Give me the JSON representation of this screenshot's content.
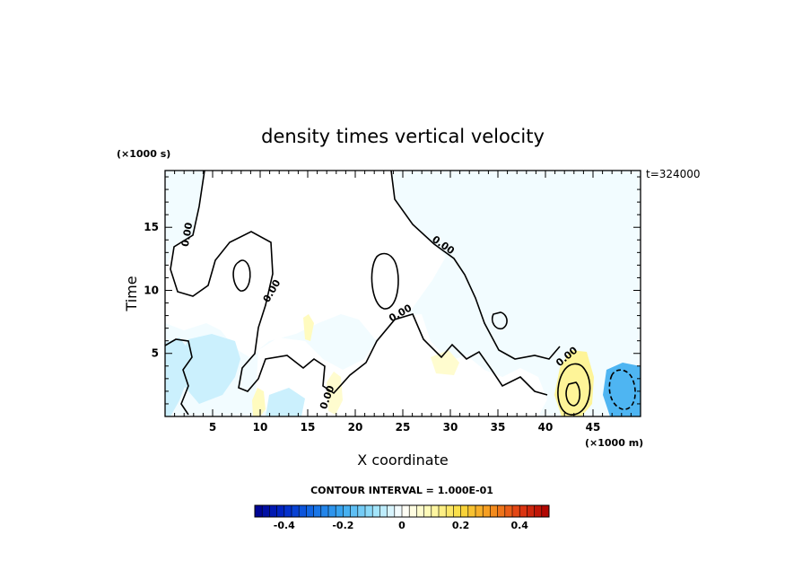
{
  "chart_data": {
    "type": "heatmap",
    "title": "density times vertical velocity",
    "xlabel": "X coordinate",
    "ylabel": "Time",
    "x_unit_label": "(×1000 m)",
    "y_unit_label": "(×1000 s)",
    "time_tag": "t=324000",
    "xlim": [
      0,
      50
    ],
    "ylim": [
      0,
      19.5
    ],
    "xticks": [
      5,
      10,
      15,
      20,
      25,
      30,
      35,
      40,
      45
    ],
    "yticks": [
      5,
      10,
      15
    ],
    "contour_label": "0.00",
    "contour_interval_text": "CONTOUR INTERVAL = 1.000E-01",
    "colorbar": {
      "min": -0.5,
      "max": 0.5,
      "step": 0.025,
      "tick_values": [
        -0.4,
        -0.2,
        0,
        0.2,
        0.4
      ],
      "tick_labels": [
        "-0.4",
        "-0.2",
        "0",
        "0.2",
        "0.4"
      ]
    },
    "fields": [
      {
        "name": "light-blue-region-left",
        "x": [
          0,
          8
        ],
        "y": [
          0,
          7
        ],
        "value": -0.05
      },
      {
        "name": "light-blue-region-center",
        "x": [
          8,
          17
        ],
        "y": [
          0,
          5
        ],
        "value": -0.05
      },
      {
        "name": "yellow-patch-10km",
        "x": [
          9,
          10.5
        ],
        "y": [
          0,
          2
        ],
        "value": 0.08
      },
      {
        "name": "yellow-patch-18km",
        "x": [
          17.5,
          19
        ],
        "y": [
          0,
          3
        ],
        "value": 0.06
      },
      {
        "name": "yellow-patch-43km",
        "x": [
          41,
          45
        ],
        "y": [
          0,
          5
        ],
        "value": 0.12
      },
      {
        "name": "blue-patch-48km",
        "x": [
          46.5,
          50
        ],
        "y": [
          0,
          4
        ],
        "value": -0.18
      }
    ]
  }
}
